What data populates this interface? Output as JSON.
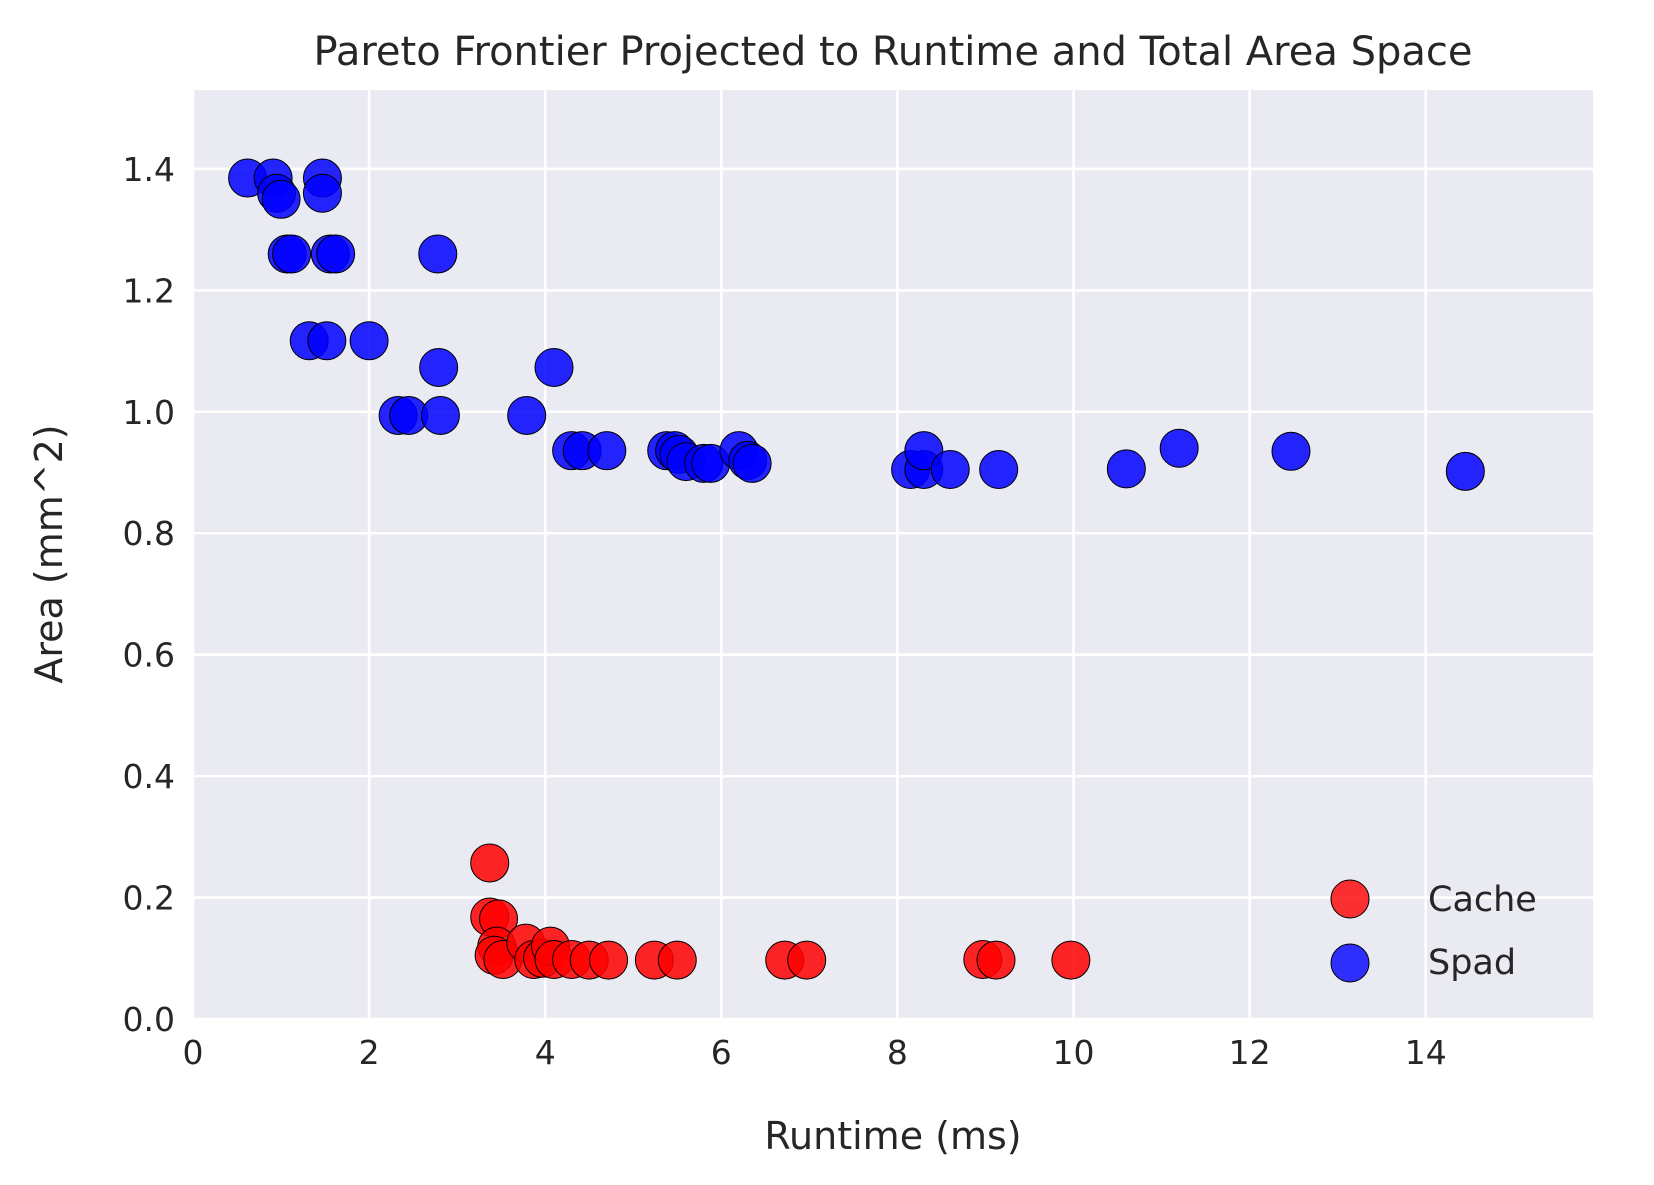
{
  "chart_data": {
    "type": "scatter",
    "title": "Pareto Frontier Projected to Runtime and Total Area Space",
    "xlabel": "Runtime (ms)",
    "ylabel": "Area (mm^2)",
    "xlim": [
      0,
      15.9
    ],
    "ylim": [
      0,
      1.53
    ],
    "xticks": [
      0,
      2,
      4,
      6,
      8,
      10,
      12,
      14
    ],
    "yticks": [
      0.0,
      0.2,
      0.4,
      0.6,
      0.8,
      1.0,
      1.2,
      1.4
    ],
    "xtick_labels": [
      "0",
      "2",
      "4",
      "6",
      "8",
      "10",
      "12",
      "14"
    ],
    "ytick_labels": [
      "0.0",
      "0.2",
      "0.4",
      "0.6",
      "0.8",
      "1.0",
      "1.2",
      "1.4"
    ],
    "grid": true,
    "legend_position": "bottom-right",
    "series": [
      {
        "name": "Cache",
        "color": "#ff0000",
        "points": [
          [
            3.37,
            0.257
          ],
          [
            3.37,
            0.168
          ],
          [
            3.47,
            0.165
          ],
          [
            3.45,
            0.12
          ],
          [
            3.42,
            0.105
          ],
          [
            3.52,
            0.098
          ],
          [
            3.78,
            0.125
          ],
          [
            3.87,
            0.098
          ],
          [
            3.97,
            0.1
          ],
          [
            4.06,
            0.12
          ],
          [
            4.1,
            0.098
          ],
          [
            4.3,
            0.098
          ],
          [
            4.5,
            0.097
          ],
          [
            4.72,
            0.097
          ],
          [
            5.24,
            0.097
          ],
          [
            5.5,
            0.097
          ],
          [
            6.72,
            0.097
          ],
          [
            6.97,
            0.097
          ],
          [
            8.97,
            0.098
          ],
          [
            9.12,
            0.097
          ],
          [
            9.97,
            0.097
          ]
        ]
      },
      {
        "name": "Spad",
        "color": "#0000ff",
        "points": [
          [
            0.62,
            1.385
          ],
          [
            0.91,
            1.385
          ],
          [
            0.95,
            1.36
          ],
          [
            1.0,
            1.35
          ],
          [
            1.47,
            1.385
          ],
          [
            1.47,
            1.36
          ],
          [
            1.07,
            1.26
          ],
          [
            1.12,
            1.26
          ],
          [
            1.56,
            1.26
          ],
          [
            1.62,
            1.26
          ],
          [
            2.78,
            1.26
          ],
          [
            1.32,
            1.117
          ],
          [
            1.52,
            1.117
          ],
          [
            2.0,
            1.117
          ],
          [
            2.79,
            1.073
          ],
          [
            4.1,
            1.073
          ],
          [
            2.33,
            0.994
          ],
          [
            2.45,
            0.994
          ],
          [
            2.81,
            0.994
          ],
          [
            3.79,
            0.994
          ],
          [
            4.3,
            0.936
          ],
          [
            4.42,
            0.936
          ],
          [
            4.7,
            0.936
          ],
          [
            5.38,
            0.936
          ],
          [
            5.47,
            0.936
          ],
          [
            5.52,
            0.93
          ],
          [
            5.6,
            0.918
          ],
          [
            5.8,
            0.915
          ],
          [
            5.88,
            0.915
          ],
          [
            6.2,
            0.936
          ],
          [
            6.3,
            0.92
          ],
          [
            6.35,
            0.915
          ],
          [
            8.15,
            0.905
          ],
          [
            8.3,
            0.905
          ],
          [
            8.3,
            0.936
          ],
          [
            8.6,
            0.905
          ],
          [
            9.15,
            0.905
          ],
          [
            10.6,
            0.906
          ],
          [
            11.2,
            0.94
          ],
          [
            12.47,
            0.935
          ],
          [
            14.45,
            0.902
          ]
        ]
      }
    ]
  }
}
